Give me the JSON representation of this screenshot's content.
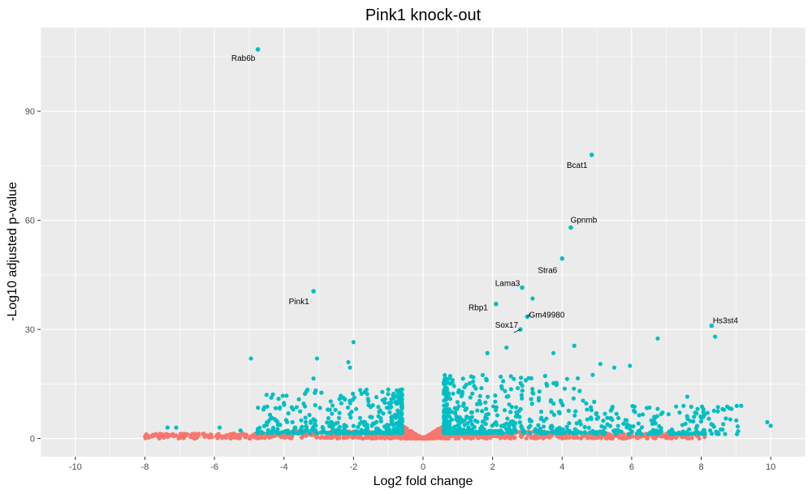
{
  "chart_data": {
    "type": "scatter",
    "title": "Pink1 knock-out",
    "xlabel": "Log2 fold change",
    "ylabel": "-Log10 adjusted p-value",
    "xlim": [
      -11,
      11
    ],
    "ylim": [
      -5,
      113
    ],
    "x_ticks": [
      -10,
      -8,
      -6,
      -4,
      -2,
      0,
      2,
      4,
      6,
      8,
      10
    ],
    "x_tick_labels": [
      "-10",
      "-8",
      "-6",
      "-4",
      "-2",
      "0",
      "2",
      "4",
      "6",
      "8",
      "10"
    ],
    "y_ticks": [
      0,
      30,
      60,
      90
    ],
    "y_tick_labels": [
      "0",
      "30",
      "60",
      "90"
    ],
    "grid": true,
    "colors": {
      "background": "#ebebeb",
      "grid": "#ffffff",
      "significant": "#00bfc4",
      "not_significant": "#f8766d"
    },
    "labeled_points": [
      {
        "gene": "Rab6b",
        "x": -4.75,
        "y": 107
      },
      {
        "gene": "Bcat1",
        "x": 4.85,
        "y": 78
      },
      {
        "gene": "Gpnmb",
        "x": 4.25,
        "y": 58
      },
      {
        "gene": "Stra6",
        "x": 4.0,
        "y": 49.5
      },
      {
        "gene": "Lama3",
        "x": 2.85,
        "y": 41.5
      },
      {
        "gene": "Pink1",
        "x": -3.15,
        "y": 40.5
      },
      {
        "gene": "Rbp1",
        "x": 2.1,
        "y": 37
      },
      {
        "gene": "Gm49980",
        "x": 3.0,
        "y": 33.5
      },
      {
        "gene": "Sox17",
        "x": 2.8,
        "y": 30
      },
      {
        "gene": "Hs3st4",
        "x": 8.3,
        "y": 31
      }
    ],
    "other_significant_points": [
      {
        "x": 3.15,
        "y": 38.5
      },
      {
        "x": -4.95,
        "y": 22
      },
      {
        "x": -3.05,
        "y": 22
      },
      {
        "x": -2.0,
        "y": 26.5
      },
      {
        "x": -2.15,
        "y": 21
      },
      {
        "x": -2.1,
        "y": 19.5
      },
      {
        "x": -3.15,
        "y": 16.5
      },
      {
        "x": -4.5,
        "y": 12
      },
      {
        "x": 4.35,
        "y": 25.5
      },
      {
        "x": 3.75,
        "y": 23.5
      },
      {
        "x": 2.4,
        "y": 25
      },
      {
        "x": 1.85,
        "y": 23.5
      },
      {
        "x": 6.75,
        "y": 27.5
      },
      {
        "x": 8.4,
        "y": 28
      },
      {
        "x": 5.1,
        "y": 20.5
      },
      {
        "x": 5.95,
        "y": 20
      },
      {
        "x": 5.5,
        "y": 19.5
      },
      {
        "x": 7.6,
        "y": 11.5
      },
      {
        "x": 9.15,
        "y": 9
      },
      {
        "x": 9.9,
        "y": 4.5
      },
      {
        "x": -7.35,
        "y": 3
      },
      {
        "x": -7.1,
        "y": 3
      },
      {
        "x": -5.85,
        "y": 3
      },
      {
        "x": -4.65,
        "y": 1.8
      },
      {
        "x": -5.25,
        "y": 2.2
      },
      {
        "x": 10.0,
        "y": 3.5
      }
    ]
  }
}
